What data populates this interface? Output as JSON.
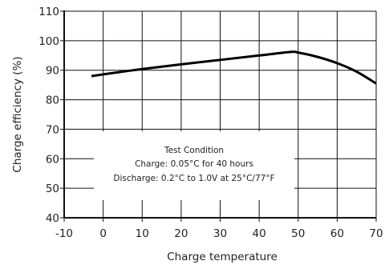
{
  "chart_data": {
    "type": "line",
    "xlabel": "Charge temperature",
    "ylabel": "Charge efficiency (%)",
    "xlim": [
      -10,
      70
    ],
    "ylim": [
      40,
      110
    ],
    "xticks": [
      -10,
      0,
      10,
      20,
      30,
      40,
      50,
      60,
      70
    ],
    "yticks": [
      40,
      50,
      60,
      70,
      80,
      90,
      100,
      110
    ],
    "grid": true,
    "series": [
      {
        "x": [
          -3,
          0,
          10,
          20,
          30,
          40,
          48,
          50,
          55,
          60,
          65,
          70
        ],
        "y": [
          88,
          88.6,
          90.4,
          92,
          93.5,
          95,
          96.2,
          96,
          94.5,
          92.4,
          89.5,
          85.5
        ]
      }
    ],
    "annotation": {
      "lines": [
        "Test Condition",
        "Charge: 0.05°C for 40 hours",
        "Discharge: 0.2°C to 1.0V at 25°C/77°F"
      ]
    }
  }
}
